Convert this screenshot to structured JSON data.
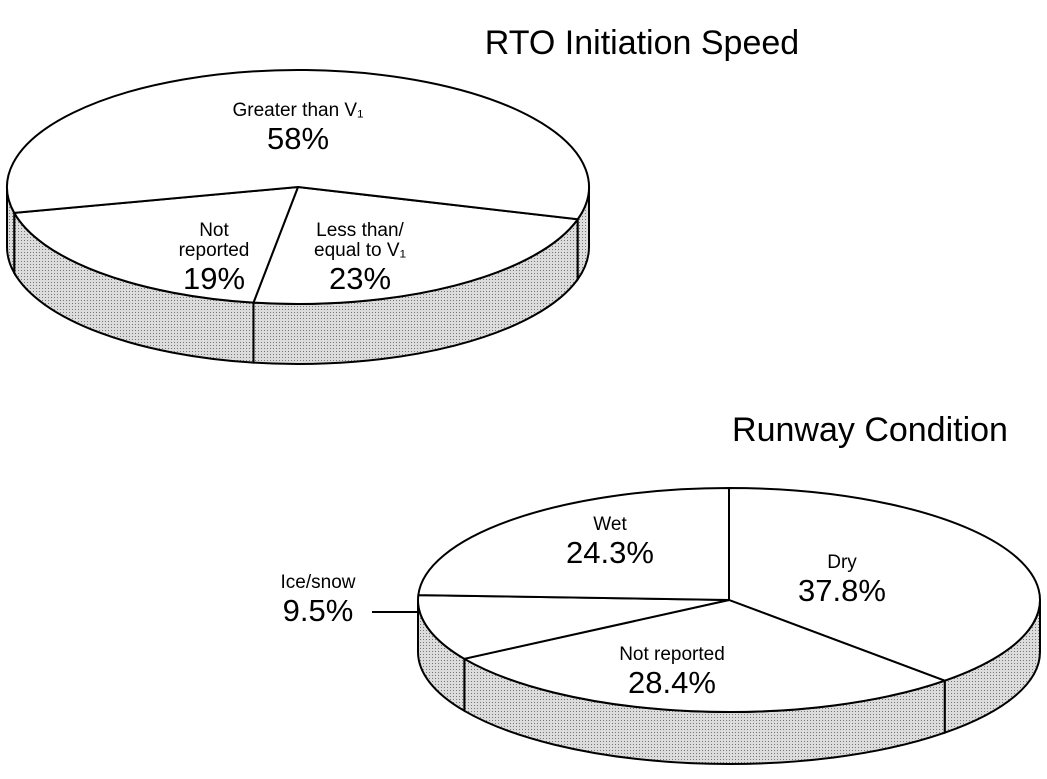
{
  "chart_data": [
    {
      "type": "pie",
      "title": "RTO Initiation Speed",
      "categories": [
        "Less than/ equal to V₁",
        "Not reported",
        "Greater than V₁"
      ],
      "values": [
        23,
        19,
        58
      ],
      "value_labels": [
        "23%",
        "19%",
        "58%"
      ]
    },
    {
      "type": "pie",
      "title": "Runway Condition",
      "categories": [
        "Dry",
        "Not reported",
        "Ice/snow",
        "Wet"
      ],
      "values": [
        37.8,
        28.4,
        9.5,
        24.3
      ],
      "value_labels": [
        "37.8%",
        "28.4%",
        "9.5%",
        "24.3%"
      ]
    }
  ]
}
